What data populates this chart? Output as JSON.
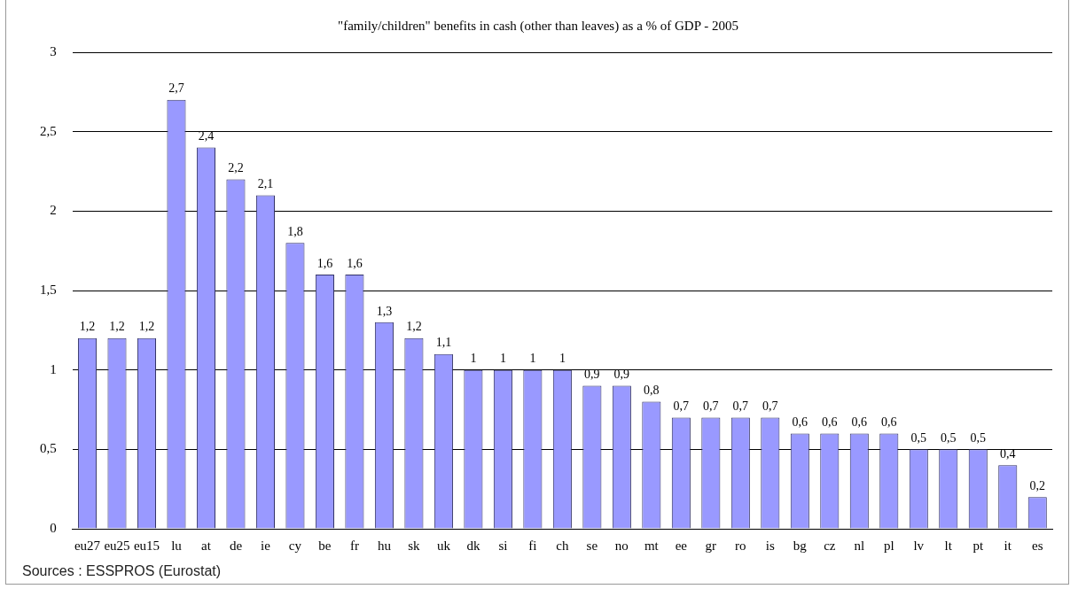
{
  "chart_data": {
    "type": "bar",
    "title": "\"family/children\" benefits in cash (other than leaves) as a % of GDP - 2005",
    "categories": [
      "eu27",
      "eu25",
      "eu15",
      "lu",
      "at",
      "de",
      "ie",
      "cy",
      "be",
      "fr",
      "hu",
      "sk",
      "uk",
      "dk",
      "si",
      "fi",
      "ch",
      "se",
      "no",
      "mt",
      "ee",
      "gr",
      "ro",
      "is",
      "bg",
      "cz",
      "nl",
      "pl",
      "lv",
      "lt",
      "pt",
      "it",
      "es"
    ],
    "values": [
      1.2,
      1.2,
      1.2,
      2.7,
      2.4,
      2.2,
      2.1,
      1.8,
      1.6,
      1.6,
      1.3,
      1.2,
      1.1,
      1,
      1,
      1,
      1,
      0.9,
      0.9,
      0.8,
      0.7,
      0.7,
      0.7,
      0.7,
      0.6,
      0.6,
      0.6,
      0.6,
      0.5,
      0.5,
      0.5,
      0.4,
      0.2
    ],
    "value_labels": [
      "1,2",
      "1,2",
      "1,2",
      "2,7",
      "2,4",
      "2,2",
      "2,1",
      "1,8",
      "1,6",
      "1,6",
      "1,3",
      "1,2",
      "1,1",
      "1",
      "1",
      "1",
      "1",
      "0,9",
      "0,9",
      "0,8",
      "0,7",
      "0,7",
      "0,7",
      "0,7",
      "0,6",
      "0,6",
      "0,6",
      "0,6",
      "0,5",
      "0,5",
      "0,5",
      "0,4",
      "0,2"
    ],
    "color": "#9999ff",
    "ylim": [
      0,
      3
    ],
    "yticks": [
      0,
      {
        "value": 0.5,
        "label": "0,5"
      },
      1,
      {
        "value": 1.5,
        "label": "1,5"
      },
      2,
      {
        "value": 2.5,
        "label": "2,5"
      },
      3
    ],
    "grid": "y",
    "legend": false,
    "annotations": [
      "Sources : ESSPROS (Eurostat)"
    ]
  }
}
